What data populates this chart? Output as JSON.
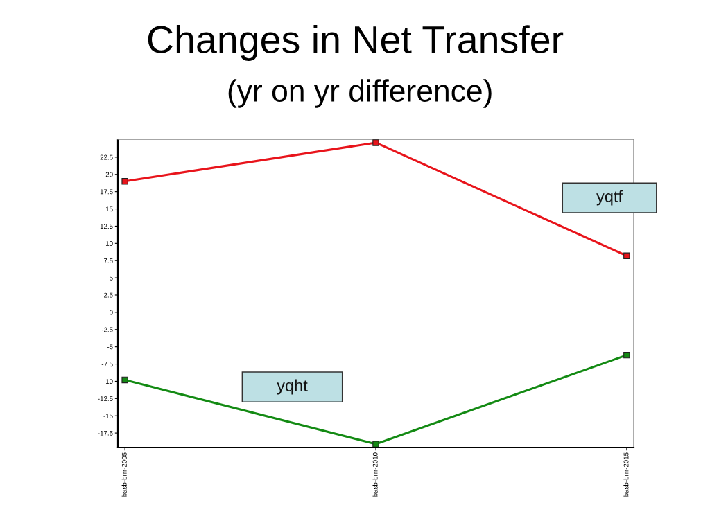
{
  "chart_data": {
    "type": "line",
    "title": "Changes in Net Transfer",
    "subtitle": "(yr on yr difference)",
    "categories": [
      "basb-brrr-2005",
      "basb-brrr-2010",
      "basb-brrr-2015"
    ],
    "series": [
      {
        "name": "yqtf",
        "color": "#e8141b",
        "values": [
          19,
          24.6,
          8.2
        ]
      },
      {
        "name": "yqht",
        "color": "#138a13",
        "values": [
          -9.8,
          -19.1,
          -6.2
        ]
      }
    ],
    "ylim": [
      -19.6,
      25.1
    ],
    "yticks": [
      -17.5,
      -15,
      -12.5,
      -10,
      -7.5,
      -5,
      -2.5,
      0,
      2.5,
      5,
      7.5,
      10,
      12.5,
      15,
      17.5,
      20,
      22.5
    ],
    "marker": "square",
    "line_style": "solid",
    "grid": false
  }
}
